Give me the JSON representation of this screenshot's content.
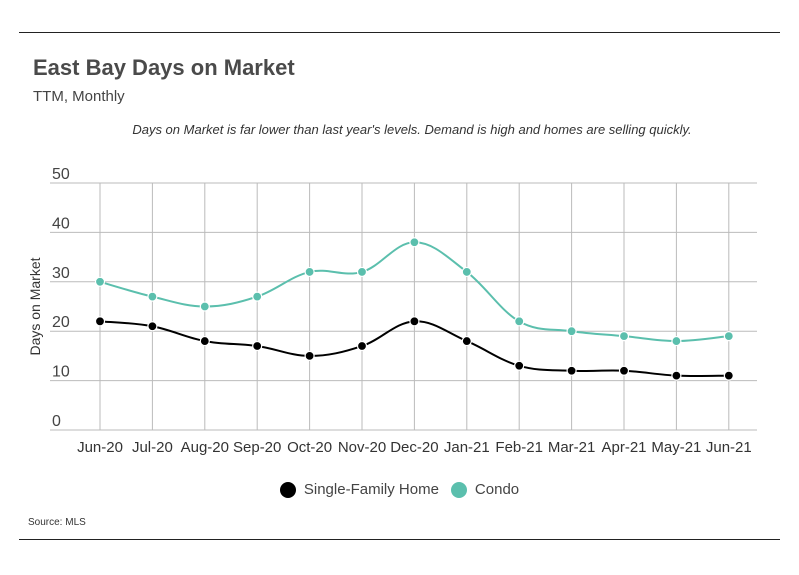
{
  "header": {
    "title": "East Bay Days on Market",
    "subtitle": "TTM, Monthly",
    "annotation": "Days on Market is far lower than last year's levels. Demand is high and homes are selling quickly."
  },
  "footer": {
    "source": "Source:  MLS"
  },
  "colors": {
    "single_family": "#000000",
    "condo": "#5bbfad",
    "grid": "#bbbbbb"
  },
  "chart_data": {
    "type": "line",
    "title": "East Bay Days on Market",
    "subtitle": "TTM, Monthly",
    "xlabel": "",
    "ylabel": "Days on Market",
    "ylim": [
      0,
      50
    ],
    "yticks": [
      0,
      10,
      20,
      30,
      40,
      50
    ],
    "grid": true,
    "legend_position": "bottom",
    "categories": [
      "Jun-20",
      "Jul-20",
      "Aug-20",
      "Sep-20",
      "Oct-20",
      "Nov-20",
      "Dec-20",
      "Jan-21",
      "Feb-21",
      "Mar-21",
      "Apr-21",
      "May-21",
      "Jun-21"
    ],
    "series": [
      {
        "name": "Single-Family Home",
        "color": "#000000",
        "values": [
          22,
          21,
          18,
          17,
          15,
          17,
          22,
          18,
          13,
          12,
          12,
          11,
          11
        ]
      },
      {
        "name": "Condo",
        "color": "#5bbfad",
        "values": [
          30,
          27,
          25,
          27,
          32,
          32,
          38,
          32,
          22,
          20,
          19,
          18,
          19
        ]
      }
    ]
  }
}
